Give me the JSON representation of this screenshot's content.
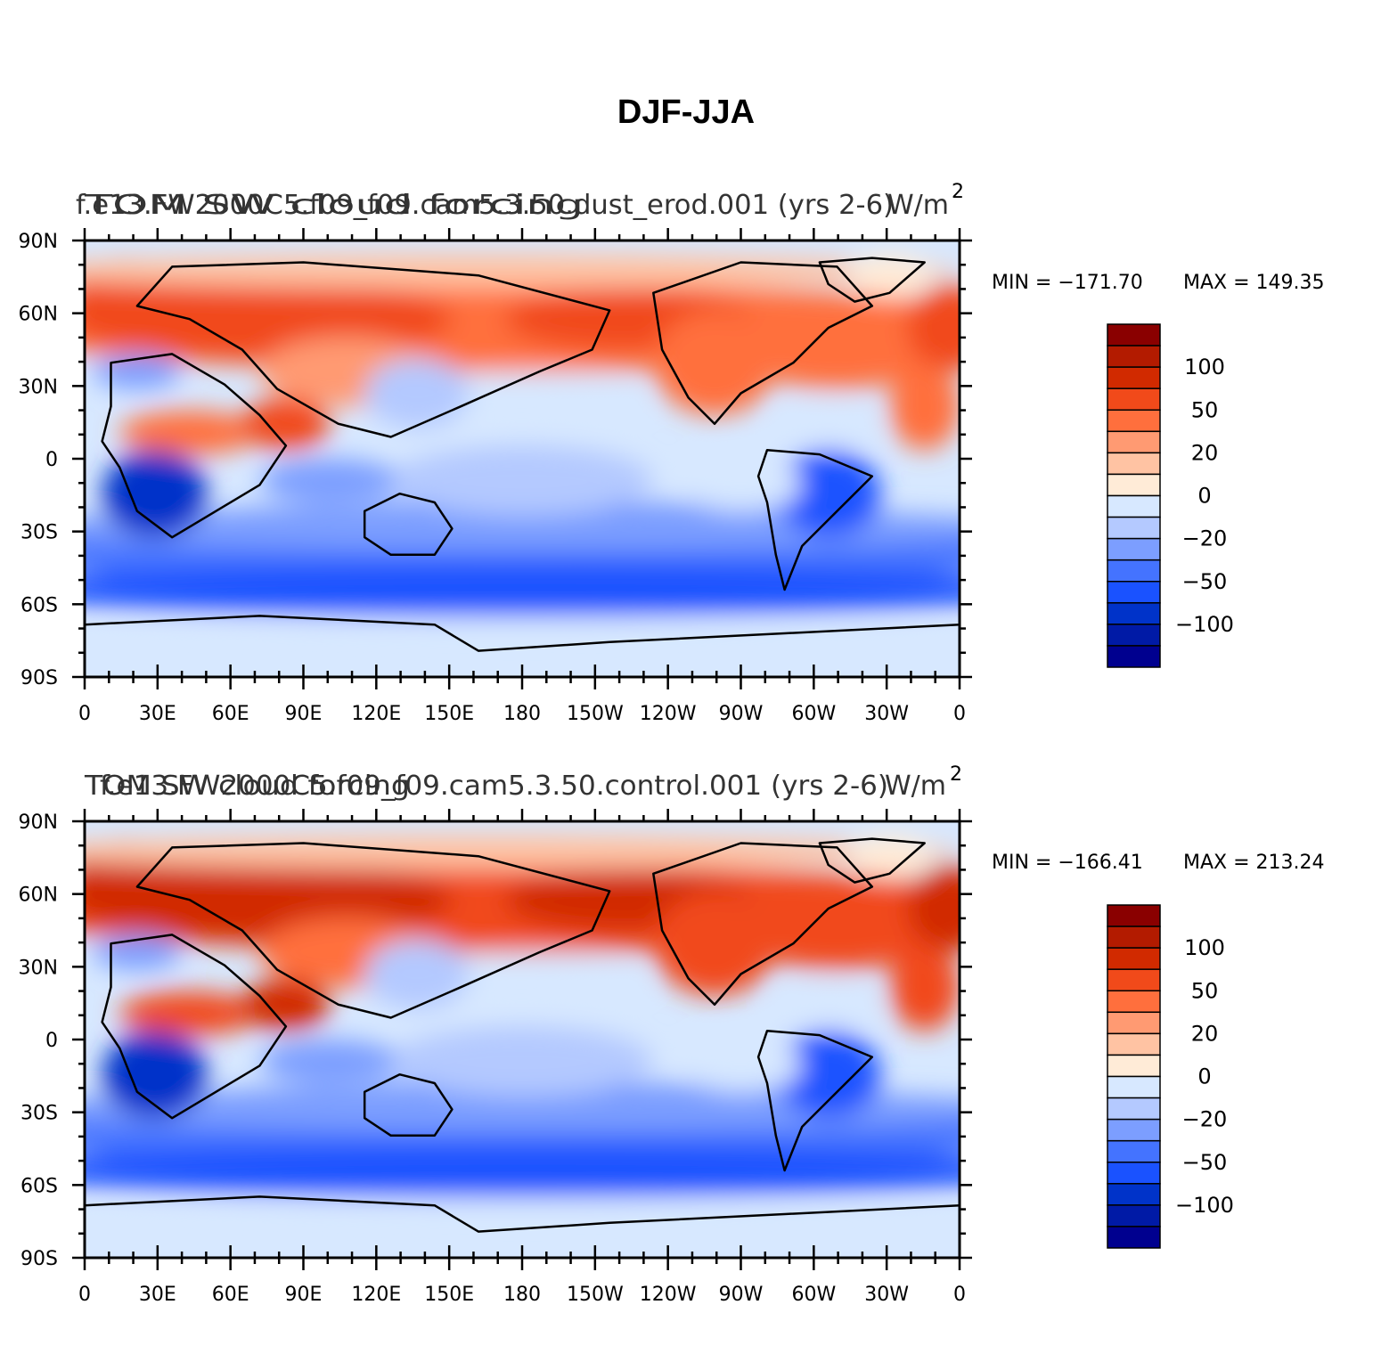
{
  "figure_title": "DJF-JJA",
  "colors": {
    "levels": [
      "#00008f",
      "#001aa6",
      "#0033c9",
      "#1a52ff",
      "#4473ff",
      "#7c9eff",
      "#b4c9ff",
      "#d7e8ff",
      "#ffebd7",
      "#ffc3a3",
      "#ff9a72",
      "#ff6f3d",
      "#f14a1a",
      "#d12a00",
      "#b31b00",
      "#8a0000"
    ]
  },
  "chart_data": [
    {
      "type": "heatmap",
      "subtitle_left": "f.e13.FW2000C5.f09_f09.cam5.3.50.dust_erod.001 (yrs 2-6)",
      "subtitle_left_overlap": "TOM SW cloud forcing",
      "subtitle_right": "W/m",
      "subtitle_right_exp": "2",
      "min_label": "MIN = −171.70",
      "max_label": "MAX = 149.35",
      "min": -171.7,
      "max": 149.35,
      "x_ticks": [
        "0",
        "30E",
        "60E",
        "90E",
        "120E",
        "150E",
        "180",
        "150W",
        "120W",
        "90W",
        "60W",
        "30W",
        "0"
      ],
      "y_ticks": [
        "90N",
        "60N",
        "30N",
        "0",
        "30S",
        "60S",
        "90S"
      ],
      "colorbar_labels": [
        "100",
        "50",
        "20",
        "0",
        "−20",
        "−50",
        "−100"
      ],
      "xlim": [
        0,
        360
      ],
      "ylim": [
        -90,
        90
      ]
    },
    {
      "type": "heatmap",
      "subtitle_left": "f.e13.FW2000C5.f09_f09.cam5.3.50.control.001 (yrs 2-6)",
      "subtitle_left_overlap": "TOM SW cloud forcing",
      "subtitle_right": "W/m",
      "subtitle_right_exp": "2",
      "min_label": "MIN = −166.41",
      "max_label": "MAX = 213.24",
      "min": -166.41,
      "max": 213.24,
      "x_ticks": [
        "0",
        "30E",
        "60E",
        "90E",
        "120E",
        "150E",
        "180",
        "150W",
        "120W",
        "90W",
        "60W",
        "30W",
        "0"
      ],
      "y_ticks": [
        "90N",
        "60N",
        "30N",
        "0",
        "30S",
        "60S",
        "90S"
      ],
      "colorbar_labels": [
        "100",
        "50",
        "20",
        "0",
        "−20",
        "−50",
        "−100"
      ],
      "xlim": [
        0,
        360
      ],
      "ylim": [
        -90,
        90
      ]
    }
  ]
}
